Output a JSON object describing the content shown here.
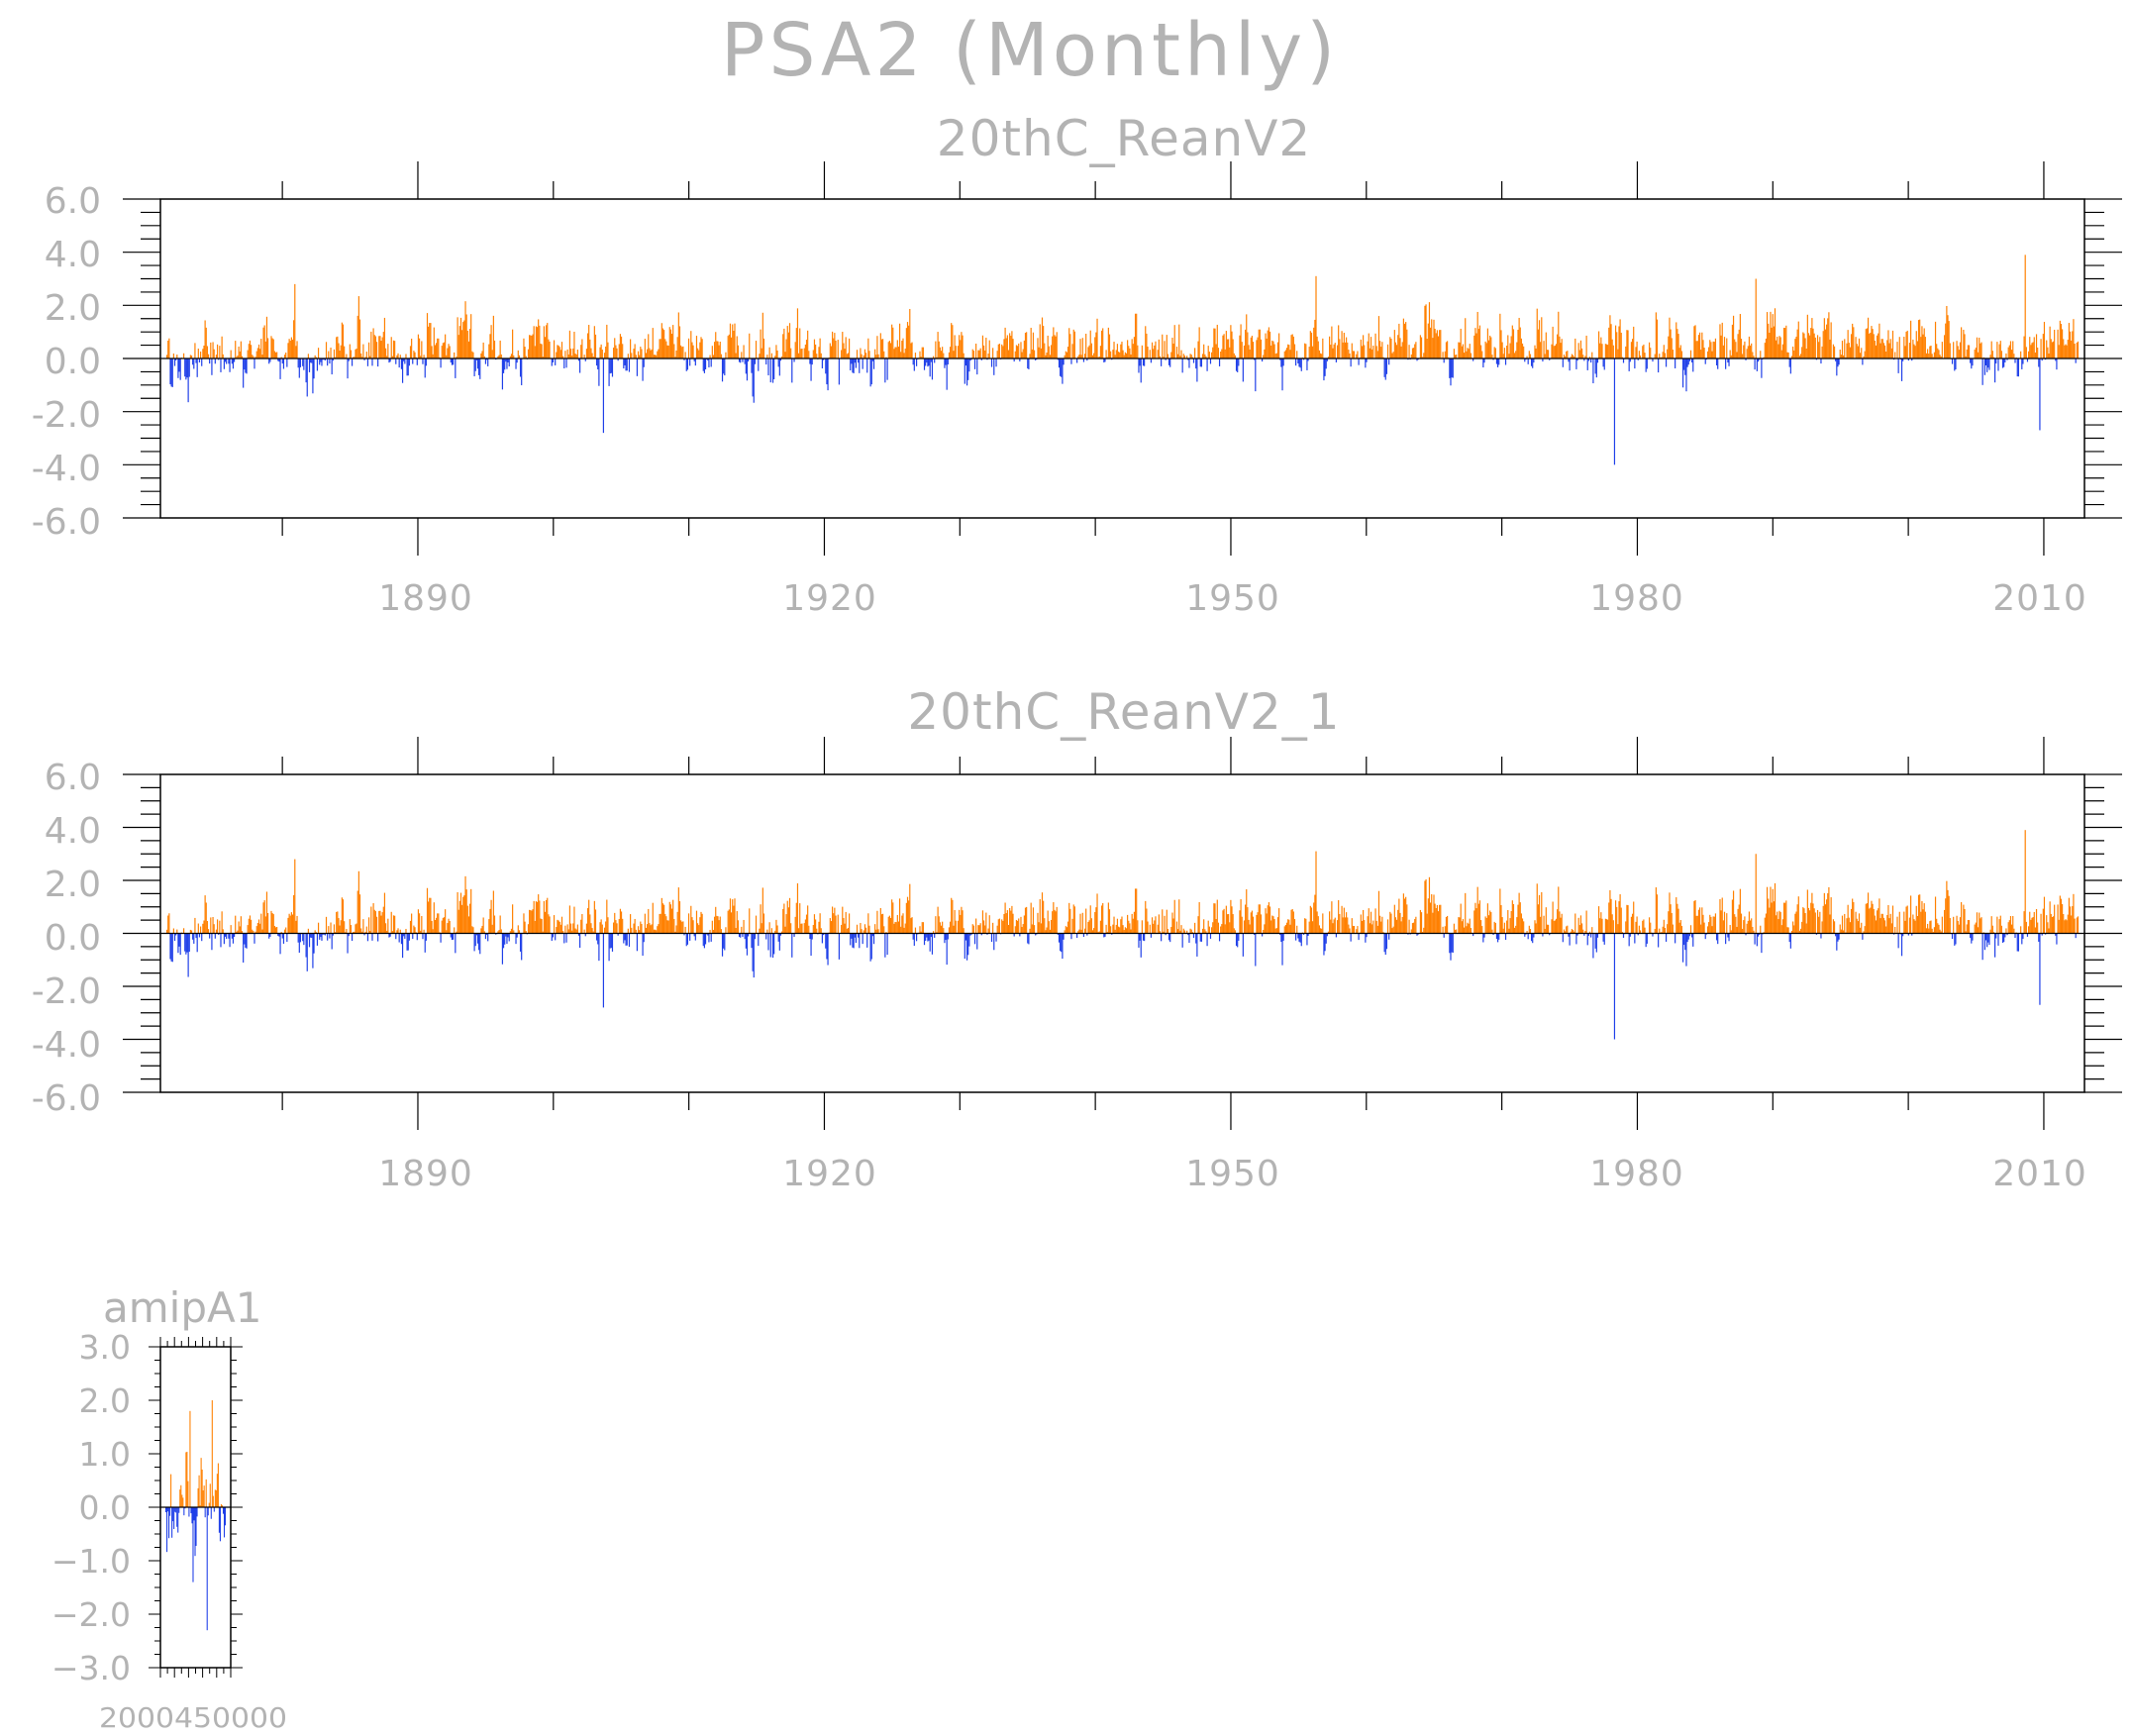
{
  "figure": {
    "title": "PSA2 (Monthly)",
    "colors": {
      "positive": "#ff8000",
      "negative": "#1f3fe8",
      "text": "#b3b3b3",
      "axis": "#000000"
    }
  },
  "chart_data": [
    {
      "type": "bar",
      "title": "20thC_ReanV2",
      "xlabel": "",
      "ylabel": "",
      "x_range": [
        1871,
        2013
      ],
      "ylim": [
        -6.0,
        6.0
      ],
      "y_ticks": [
        "6.0",
        "4.0",
        "2.0",
        "0.0",
        "-2.0",
        "-4.0",
        "-6.0"
      ],
      "x_tick_labels": [
        "1890",
        "1920",
        "1950",
        "1980",
        "2010"
      ],
      "resolution": "monthly",
      "notable_values": [
        {
          "x": 1880.5,
          "y": 2.8
        },
        {
          "x": 1903.4,
          "y": -2.8
        },
        {
          "x": 1956.3,
          "y": 3.1
        },
        {
          "x": 1978.5,
          "y": -4.0
        },
        {
          "x": 1989.0,
          "y": 3.0
        },
        {
          "x": 2009.0,
          "y": 3.9
        },
        {
          "x": 2010.1,
          "y": -2.7
        }
      ]
    },
    {
      "type": "bar",
      "title": "20thC_ReanV2_1",
      "xlabel": "",
      "ylabel": "",
      "x_range": [
        1871,
        2013
      ],
      "ylim": [
        -6.0,
        6.0
      ],
      "y_ticks": [
        "6.0",
        "4.0",
        "2.0",
        "0.0",
        "-2.0",
        "-4.0",
        "-6.0"
      ],
      "x_tick_labels": [
        "1890",
        "1920",
        "1950",
        "1980",
        "2010"
      ],
      "resolution": "monthly",
      "notable_values": [
        {
          "x": 1880.5,
          "y": 2.8
        },
        {
          "x": 1903.4,
          "y": -2.8
        },
        {
          "x": 1956.3,
          "y": 3.1
        },
        {
          "x": 1978.5,
          "y": -4.0
        },
        {
          "x": 1989.0,
          "y": 3.0
        },
        {
          "x": 2009.0,
          "y": 3.9
        },
        {
          "x": 2010.1,
          "y": -2.7
        }
      ]
    },
    {
      "type": "bar",
      "title": "amipA1",
      "xlabel": "",
      "ylabel": "",
      "ylim": [
        -3.0,
        3.0
      ],
      "y_ticks": [
        "3.0",
        "2.0",
        "1.0",
        "0.0",
        "−1.0",
        "−2.0",
        "−3.0"
      ],
      "x_tick_labels_overlapping": "2000450000",
      "resolution": "monthly",
      "notable_values": [
        {
          "x_fraction": 0.4,
          "y": 1.8
        },
        {
          "x_fraction": 0.78,
          "y": 2.0
        },
        {
          "x_fraction": 0.45,
          "y": -1.4
        },
        {
          "x_fraction": 0.7,
          "y": -2.3
        }
      ]
    }
  ]
}
